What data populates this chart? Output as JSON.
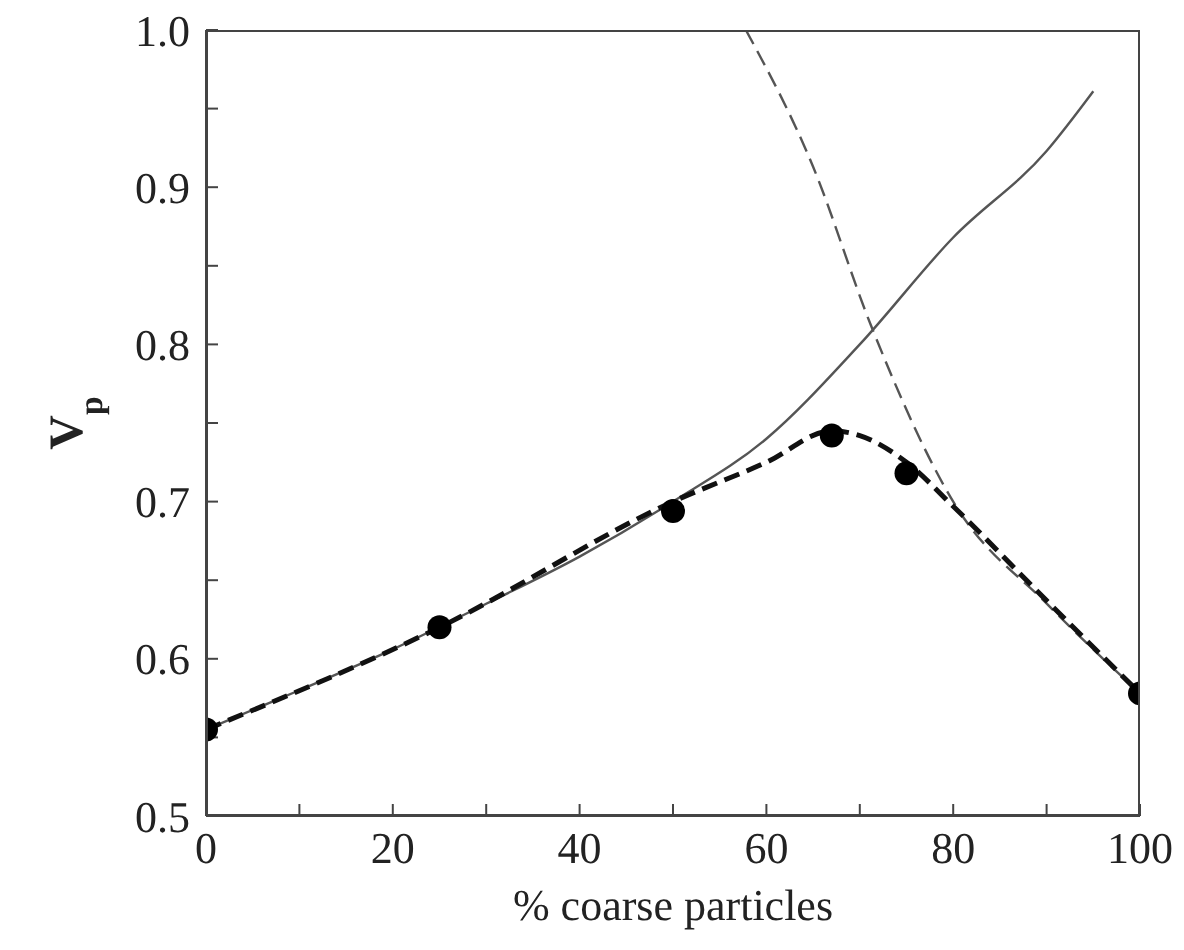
{
  "chart_data": {
    "type": "line",
    "xlabel": "% coarse particles",
    "ylabel": "V$_{p}$",
    "xlim": [
      0,
      100
    ],
    "ylim": [
      0.5,
      1.0
    ],
    "xticks": [
      0,
      {
        "value": 10,
        "label": null
      },
      20,
      {
        "value": 30,
        "label": null
      },
      40,
      {
        "value": 50,
        "label": null
      },
      60,
      {
        "value": 70,
        "label": null
      },
      80,
      {
        "value": 90,
        "label": null
      },
      100
    ],
    "yticks": [
      0.5,
      {
        "value": 0.55,
        "label": null
      },
      0.6,
      {
        "value": 0.65,
        "label": null
      },
      0.7,
      {
        "value": 0.75,
        "label": null
      },
      0.8,
      {
        "value": 0.85,
        "label": null
      },
      0.9,
      {
        "value": 0.95,
        "label": null
      },
      {
        "value": 1.0,
        "label": "1.0"
      }
    ],
    "grid": false,
    "legend": false,
    "series": [
      {
        "color": "#555555",
        "line_style": "solid",
        "marker": "none",
        "x": [
          0,
          10,
          20,
          30,
          40,
          50,
          60,
          70,
          80,
          90,
          95
        ],
        "values": [
          0.555,
          0.58,
          0.606,
          0.635,
          0.665,
          0.7,
          0.74,
          0.8,
          0.868,
          0.923,
          0.961
        ]
      },
      {
        "color": "#555555",
        "line_style": "dashed",
        "marker": "none",
        "x": [
          57.8,
          65,
          71.2,
          80.1,
          90.2,
          100
        ],
        "values": [
          1.0,
          0.913,
          0.812,
          0.699,
          0.634,
          0.578
        ]
      },
      {
        "color": "#111111",
        "line_style": "dashed",
        "marker": "none",
        "x": [
          0,
          25,
          50,
          60,
          67,
          70,
          75,
          80,
          90,
          100
        ],
        "values": [
          0.555,
          0.62,
          0.7,
          0.725,
          0.745,
          0.742,
          0.725,
          0.697,
          0.637,
          0.578
        ]
      },
      {
        "type": "scatter",
        "color": "#000000",
        "marker": "circle",
        "x": [
          0,
          25,
          50,
          67,
          75,
          100
        ],
        "values": [
          0.555,
          0.62,
          0.694,
          0.742,
          0.718,
          0.578
        ]
      }
    ]
  }
}
